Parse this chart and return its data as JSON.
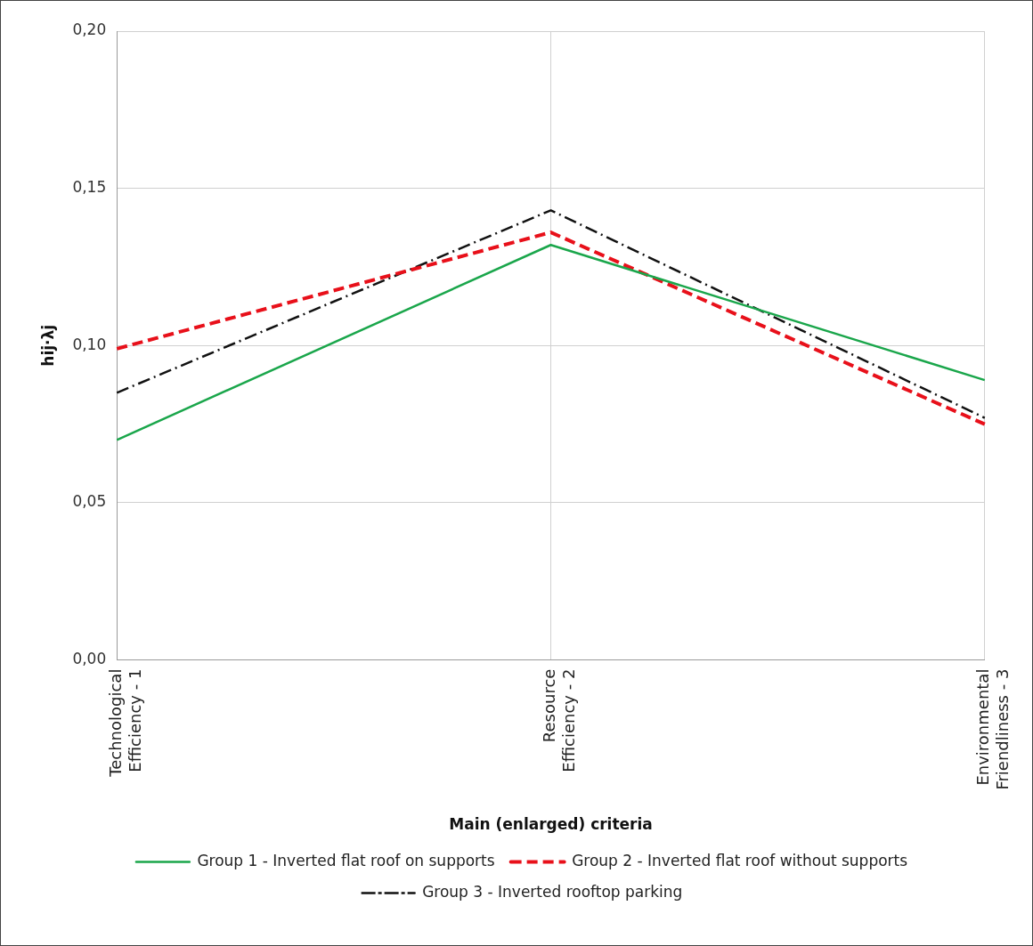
{
  "chart_data": {
    "type": "line",
    "xlabel": "Main (enlarged) criteria",
    "ylabel": "hij·λj",
    "categories": [
      "Technological Efficiency - 1",
      "Resource Efficiency - 2",
      "Environmental Friendliness - 3"
    ],
    "series": [
      {
        "name": "Group 1 - Inverted flat roof on supports",
        "color": "#1aa64b",
        "line_style": "solid",
        "values": [
          0.07,
          0.132,
          0.089
        ]
      },
      {
        "name": "Group 2 - Inverted flat roof without supports",
        "color": "#e8101a",
        "line_style": "dashed",
        "values": [
          0.099,
          0.136,
          0.075
        ]
      },
      {
        "name": "Group 3 - Inverted rooftop parking",
        "color": "#111111",
        "line_style": "dashdot",
        "values": [
          0.085,
          0.143,
          0.077
        ]
      }
    ],
    "ylim": [
      0,
      0.2
    ],
    "yticks": [
      {
        "value": 0,
        "label": "0,00"
      },
      {
        "value": 0.05,
        "label": "0,05"
      },
      {
        "value": 0.1,
        "label": "0,10"
      },
      {
        "value": 0.15,
        "label": "0,15"
      },
      {
        "value": 0.2,
        "label": "0,20"
      }
    ],
    "grid": true,
    "legend": "bottom",
    "marker": "none"
  }
}
